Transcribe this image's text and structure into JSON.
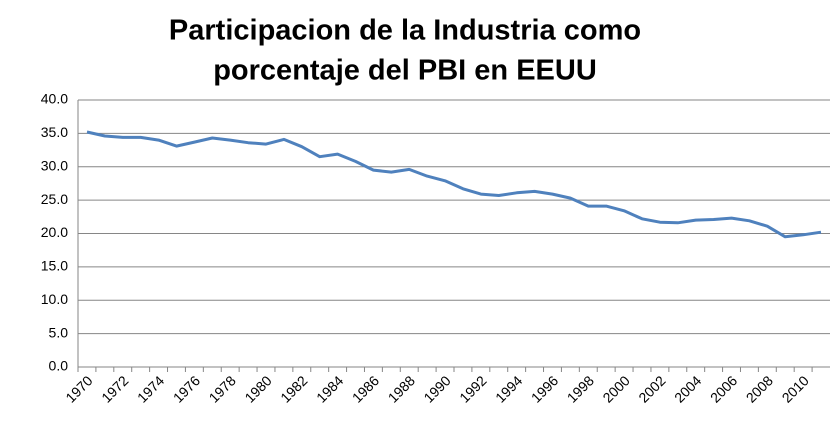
{
  "chart_data": {
    "type": "line",
    "title": [
      "Participacion de la Industria como",
      "porcentaje del PBI en EEUU"
    ],
    "categories": [
      "1970",
      null,
      "1972",
      null,
      "1974",
      null,
      "1976",
      null,
      "1978",
      null,
      "1980",
      null,
      "1982",
      null,
      "1984",
      null,
      "1986",
      null,
      "1988",
      null,
      "1990",
      null,
      "1992",
      null,
      "1994",
      null,
      "1996",
      null,
      "1998",
      null,
      "2000",
      null,
      "2002",
      null,
      "2004",
      null,
      "2006",
      null,
      "2008",
      null,
      "2010",
      null
    ],
    "values": [
      35.2,
      34.6,
      34.4,
      34.4,
      34.0,
      33.1,
      33.7,
      34.3,
      34.0,
      33.6,
      33.4,
      34.1,
      33.0,
      31.5,
      31.9,
      30.8,
      29.5,
      29.2,
      29.6,
      28.6,
      27.9,
      26.7,
      25.9,
      25.7,
      26.1,
      26.3,
      25.9,
      25.3,
      24.1,
      24.1,
      23.4,
      22.2,
      21.7,
      21.6,
      22.0,
      22.1,
      22.3,
      21.9,
      21.1,
      19.5,
      19.8,
      20.2
    ],
    "color": "#4f81bd",
    "ylim": [
      0,
      40
    ],
    "yticks": [
      {
        "value": 0,
        "label": "0.0"
      },
      {
        "value": 5,
        "label": "5.0"
      },
      {
        "value": 10,
        "label": "10.0"
      },
      {
        "value": 15,
        "label": "15.0"
      },
      {
        "value": 20,
        "label": "20.0"
      },
      {
        "value": 25,
        "label": "25.0"
      },
      {
        "value": 30,
        "label": "30.0"
      },
      {
        "value": 35,
        "label": "35.0"
      },
      {
        "value": 40,
        "label": "40.0"
      }
    ],
    "grid": true
  }
}
